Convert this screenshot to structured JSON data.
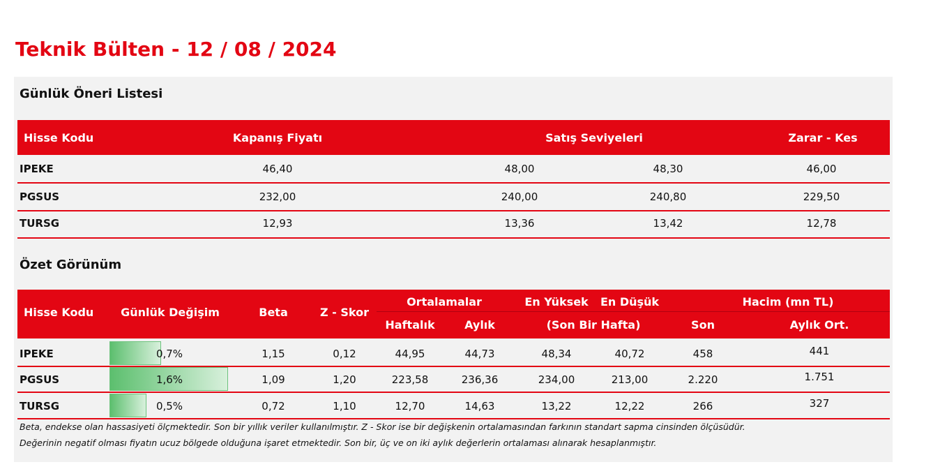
{
  "header": {
    "title": "Teknik Bülten - 12 / 08 / 2024"
  },
  "recommendations": {
    "title": "Günlük Öneri Listesi",
    "columns": [
      "Hisse Kodu",
      "Kapanış Fiyatı",
      "Satış Seviyeleri",
      "Zarar  - Kes"
    ],
    "rows": [
      [
        "IPEKE",
        "46,40",
        "48,00",
        "48,30",
        "46,00"
      ],
      [
        "PGSUS",
        "232,00",
        "240,00",
        "240,80",
        "229,50"
      ],
      [
        "TURSG",
        "12,93",
        "13,36",
        "13,42",
        "12,78"
      ]
    ]
  },
  "summary": {
    "title": "Özet Görünüm",
    "header_top": [
      "Hisse Kodu",
      "Günlük Değişim",
      "Beta",
      "Z - Skor",
      "Ortalamalar",
      "En Yüksek",
      "En Düşük",
      "Hacim (mn TL)"
    ],
    "header_bottom": [
      "Haftalık",
      "Aylık",
      "(Son Bir Hafta)",
      "Son",
      "Aylık Ort."
    ],
    "rows": [
      {
        "code": "IPEKE",
        "change": {
          "value": 0.7,
          "label": "0,7%"
        },
        "beta": "1,15",
        "z_score": "0,12",
        "weekly_avg": "44,95",
        "monthly_avg": "44,73",
        "week_high": "48,34",
        "week_low": "40,72",
        "volume": "458",
        "monthly_avg_volume": "441"
      },
      {
        "code": "PGSUS",
        "change": {
          "value": 1.6,
          "label": "1,6%"
        },
        "beta": "1,09",
        "z_score": "1,20",
        "weekly_avg": "223,58",
        "monthly_avg": "236,36",
        "week_high": "234,00",
        "week_low": "213,00",
        "volume": "2.220",
        "monthly_avg_volume": "1.751"
      },
      {
        "code": "TURSG",
        "change": {
          "value": 0.5,
          "label": "0,5%"
        },
        "beta": "0,72",
        "z_score": "1,10",
        "weekly_avg": "12,70",
        "monthly_avg": "14,63",
        "week_high": "13,22",
        "week_low": "12,22",
        "volume": "266",
        "monthly_avg_volume": "327"
      }
    ],
    "notes": [
      "Beta, endekse olan hassasiyeti ölçmektedir. Son bir yıllık veriler kullanılmıştır. Z - Skor ise bir değişkenin ortalamasından farkının standart sapma cinsinden ölçüsüdür.",
      "Değerinin negatif olması fiyatın ucuz bölgede olduğuna işaret etmektedir. Son bir, üç ve on iki aylık değerlerin ortalaması alınarak hesaplanmıştır."
    ]
  }
}
